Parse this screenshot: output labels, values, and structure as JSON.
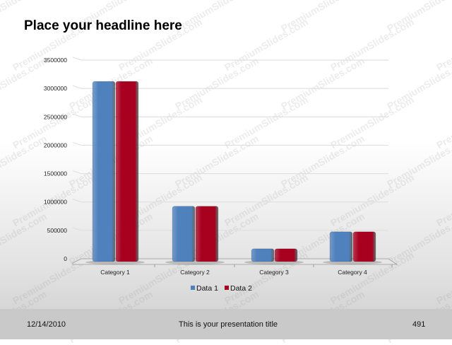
{
  "slide": {
    "headline": "Place your headline here",
    "footer": {
      "date": "12/14/2010",
      "title": "This is your presentation title",
      "page": "491"
    }
  },
  "watermark": "PremiumSlides.com",
  "chart_data": {
    "type": "bar",
    "style": "3d-clustered-column",
    "categories": [
      "Category 1",
      "Category 2",
      "Category 3",
      "Category 4"
    ],
    "series": [
      {
        "name": "Data 1",
        "color": "#4f81bd",
        "values": [
          3200000,
          1000000,
          250000,
          550000
        ]
      },
      {
        "name": "Data 2",
        "color": "#a8001f",
        "values": [
          3200000,
          1000000,
          250000,
          550000
        ]
      }
    ],
    "yticks": [
      "0",
      "500000",
      "1000000",
      "1500000",
      "2000000",
      "2500000",
      "3000000",
      "3500000"
    ],
    "ylim": [
      0,
      3500000
    ],
    "grid": true,
    "legend": "bottom"
  }
}
